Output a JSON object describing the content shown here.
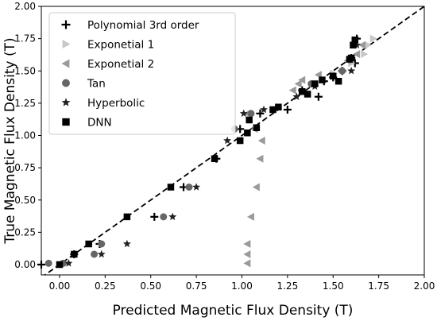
{
  "chart_data": {
    "type": "scatter",
    "xlabel": "Predicted Magnetic Flux Density (T)",
    "ylabel": "True Magnetic Flux Density (T)",
    "xlim": [
      -0.1,
      2.0
    ],
    "ylim": [
      -0.08,
      2.0
    ],
    "xticks": [
      "0.00",
      "0.25",
      "0.50",
      "0.75",
      "1.00",
      "1.25",
      "1.50",
      "1.75",
      "2.00"
    ],
    "yticks": [
      "0.00",
      "0.25",
      "0.50",
      "0.75",
      "1.00",
      "1.25",
      "1.50",
      "1.75",
      "2.00"
    ],
    "xtick_values": [
      0,
      0.25,
      0.5,
      0.75,
      1.0,
      1.25,
      1.5,
      1.75,
      2.0
    ],
    "ytick_values": [
      0,
      0.25,
      0.5,
      0.75,
      1.0,
      1.25,
      1.5,
      1.75,
      2.0
    ],
    "grid": false,
    "legend_position": "top-left",
    "reference_line": {
      "style": "dashed",
      "color": "#000000",
      "from": [
        -0.1,
        -0.1
      ],
      "to": [
        2.0,
        2.0
      ]
    },
    "series": [
      {
        "name": "Polynomial 3rd order",
        "marker": "plus",
        "color": "#000000",
        "points": [
          [
            -0.1,
            0.0
          ],
          [
            0.08,
            0.08
          ],
          [
            0.22,
            0.16
          ],
          [
            0.52,
            0.37
          ],
          [
            0.68,
            0.6
          ],
          [
            0.86,
            0.82
          ],
          [
            0.99,
            1.05
          ],
          [
            1.1,
            1.17
          ],
          [
            1.25,
            1.2
          ],
          [
            1.33,
            1.35
          ],
          [
            1.42,
            1.3
          ],
          [
            1.45,
            1.42
          ],
          [
            1.5,
            1.45
          ],
          [
            1.55,
            1.5
          ],
          [
            1.62,
            1.56
          ],
          [
            1.6,
            1.6
          ],
          [
            1.63,
            1.75
          ]
        ]
      },
      {
        "name": "Exponetial 1",
        "marker": "triangle-right",
        "color": "#c8c8c8",
        "points": [
          [
            1.5,
            1.48
          ],
          [
            1.6,
            1.56
          ],
          [
            1.67,
            1.63
          ],
          [
            1.69,
            1.7
          ],
          [
            1.72,
            1.75
          ]
        ]
      },
      {
        "name": "Exponetial 2",
        "marker": "triangle-left",
        "color": "#9a9a9a",
        "points": [
          [
            1.03,
            0.01
          ],
          [
            1.03,
            0.08
          ],
          [
            1.03,
            0.16
          ],
          [
            1.05,
            0.37
          ],
          [
            1.08,
            0.6
          ],
          [
            1.1,
            0.82
          ],
          [
            1.11,
            0.96
          ],
          [
            1.07,
            1.05
          ],
          [
            1.03,
            1.17
          ],
          [
            1.28,
            1.35
          ],
          [
            1.31,
            1.4
          ],
          [
            1.33,
            1.43
          ],
          [
            1.42,
            1.47
          ],
          [
            1.58,
            1.58
          ],
          [
            1.63,
            1.63
          ],
          [
            1.66,
            1.7
          ]
        ]
      },
      {
        "name": "Tan",
        "marker": "circle",
        "color": "#666666",
        "points": [
          [
            -0.06,
            0.01
          ],
          [
            0.02,
            0.01
          ],
          [
            0.19,
            0.08
          ],
          [
            0.23,
            0.16
          ],
          [
            0.57,
            0.37
          ],
          [
            0.71,
            0.6
          ],
          [
            0.96,
            1.05
          ],
          [
            1.05,
            1.17
          ],
          [
            1.38,
            1.4
          ],
          [
            1.55,
            1.5
          ]
        ]
      },
      {
        "name": "Hyperbolic",
        "marker": "star",
        "color": "#222222",
        "points": [
          [
            0.05,
            0.01
          ],
          [
            0.23,
            0.08
          ],
          [
            0.37,
            0.16
          ],
          [
            0.62,
            0.37
          ],
          [
            0.75,
            0.6
          ],
          [
            0.92,
            0.96
          ],
          [
            1.01,
            1.17
          ],
          [
            1.12,
            1.2
          ],
          [
            1.3,
            1.3
          ],
          [
            1.4,
            1.38
          ],
          [
            1.6,
            1.5
          ],
          [
            1.63,
            1.7
          ]
        ]
      },
      {
        "name": "DNN",
        "marker": "square",
        "color": "#000000",
        "points": [
          [
            0.0,
            0.0
          ],
          [
            0.08,
            0.08
          ],
          [
            0.16,
            0.16
          ],
          [
            0.37,
            0.37
          ],
          [
            0.61,
            0.6
          ],
          [
            0.85,
            0.82
          ],
          [
            0.99,
            0.96
          ],
          [
            1.03,
            1.02
          ],
          [
            1.04,
            1.12
          ],
          [
            1.08,
            1.06
          ],
          [
            1.17,
            1.2
          ],
          [
            1.2,
            1.22
          ],
          [
            1.33,
            1.34
          ],
          [
            1.36,
            1.32
          ],
          [
            1.4,
            1.4
          ],
          [
            1.44,
            1.43
          ],
          [
            1.5,
            1.46
          ],
          [
            1.53,
            1.42
          ],
          [
            1.59,
            1.59
          ],
          [
            1.6,
            1.6
          ],
          [
            1.61,
            1.7
          ],
          [
            1.62,
            1.74
          ]
        ]
      }
    ]
  }
}
